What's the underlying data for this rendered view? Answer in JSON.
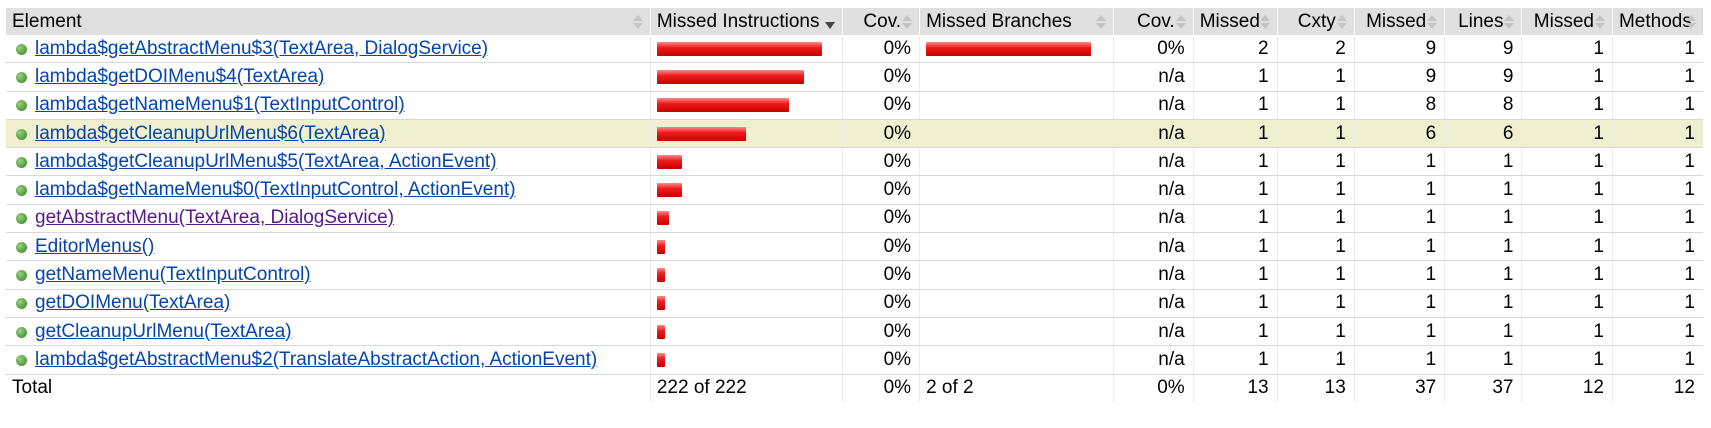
{
  "header": {
    "element": "Element",
    "missed_instructions": "Missed Instructions",
    "cov": "Cov.",
    "missed_branches": "Missed Branches",
    "cov2": "Cov.",
    "missed_cxty": "Missed",
    "cxty": "Cxty",
    "missed_lines": "Missed",
    "lines": "Lines",
    "missed_methods": "Missed",
    "methods": "Methods"
  },
  "rows": [
    {
      "name": "lambda$getAbstractMenu$3(TextArea, DialogService)",
      "instr_bar_fraction": 1.0,
      "instr_cov": "0%",
      "branch_bar_fraction": 1.0,
      "branch_cov": "0%",
      "missed_cxty": "2",
      "cxty": "2",
      "missed_lines": "9",
      "lines": "9",
      "missed_methods": "1",
      "methods": "1"
    },
    {
      "name": "lambda$getDOIMenu$4(TextArea)",
      "instr_bar_fraction": 0.89,
      "instr_cov": "0%",
      "branch_bar_fraction": 0,
      "branch_cov": "n/a",
      "missed_cxty": "1",
      "cxty": "1",
      "missed_lines": "9",
      "lines": "9",
      "missed_methods": "1",
      "methods": "1"
    },
    {
      "name": "lambda$getNameMenu$1(TextInputControl)",
      "instr_bar_fraction": 0.8,
      "instr_cov": "0%",
      "branch_bar_fraction": 0,
      "branch_cov": "n/a",
      "missed_cxty": "1",
      "cxty": "1",
      "missed_lines": "8",
      "lines": "8",
      "missed_methods": "1",
      "methods": "1"
    },
    {
      "name": "lambda$getCleanupUrlMenu$6(TextArea)",
      "instr_bar_fraction": 0.54,
      "instr_cov": "0%",
      "branch_bar_fraction": 0,
      "branch_cov": "n/a",
      "missed_cxty": "1",
      "cxty": "1",
      "missed_lines": "6",
      "lines": "6",
      "missed_methods": "1",
      "methods": "1",
      "highlight": true
    },
    {
      "name": "lambda$getCleanupUrlMenu$5(TextArea, ActionEvent)",
      "instr_bar_fraction": 0.15,
      "instr_cov": "0%",
      "branch_bar_fraction": 0,
      "branch_cov": "n/a",
      "missed_cxty": "1",
      "cxty": "1",
      "missed_lines": "1",
      "lines": "1",
      "missed_methods": "1",
      "methods": "1"
    },
    {
      "name": "lambda$getNameMenu$0(TextInputControl, ActionEvent)",
      "instr_bar_fraction": 0.15,
      "instr_cov": "0%",
      "branch_bar_fraction": 0,
      "branch_cov": "n/a",
      "missed_cxty": "1",
      "cxty": "1",
      "missed_lines": "1",
      "lines": "1",
      "missed_methods": "1",
      "methods": "1"
    },
    {
      "name": "getAbstractMenu(TextArea, DialogService)",
      "instr_bar_fraction": 0.07,
      "instr_cov": "0%",
      "branch_bar_fraction": 0,
      "branch_cov": "n/a",
      "missed_cxty": "1",
      "cxty": "1",
      "missed_lines": "1",
      "lines": "1",
      "missed_methods": "1",
      "methods": "1",
      "visited": true
    },
    {
      "name": "EditorMenus()",
      "instr_bar_fraction": 0.045,
      "instr_cov": "0%",
      "branch_bar_fraction": 0,
      "branch_cov": "n/a",
      "missed_cxty": "1",
      "cxty": "1",
      "missed_lines": "1",
      "lines": "1",
      "missed_methods": "1",
      "methods": "1"
    },
    {
      "name": "getNameMenu(TextInputControl)",
      "instr_bar_fraction": 0.045,
      "instr_cov": "0%",
      "branch_bar_fraction": 0,
      "branch_cov": "n/a",
      "missed_cxty": "1",
      "cxty": "1",
      "missed_lines": "1",
      "lines": "1",
      "missed_methods": "1",
      "methods": "1"
    },
    {
      "name": "getDOIMenu(TextArea)",
      "instr_bar_fraction": 0.045,
      "instr_cov": "0%",
      "branch_bar_fraction": 0,
      "branch_cov": "n/a",
      "missed_cxty": "1",
      "cxty": "1",
      "missed_lines": "1",
      "lines": "1",
      "missed_methods": "1",
      "methods": "1"
    },
    {
      "name": "getCleanupUrlMenu(TextArea)",
      "instr_bar_fraction": 0.045,
      "instr_cov": "0%",
      "branch_bar_fraction": 0,
      "branch_cov": "n/a",
      "missed_cxty": "1",
      "cxty": "1",
      "missed_lines": "1",
      "lines": "1",
      "missed_methods": "1",
      "methods": "1"
    },
    {
      "name": "lambda$getAbstractMenu$2(TranslateAbstractAction, ActionEvent)",
      "instr_bar_fraction": 0.045,
      "instr_cov": "0%",
      "branch_bar_fraction": 0,
      "branch_cov": "n/a",
      "missed_cxty": "1",
      "cxty": "1",
      "missed_lines": "1",
      "lines": "1",
      "missed_methods": "1",
      "methods": "1"
    }
  ],
  "footer": {
    "label": "Total",
    "instructions": "222 of 222",
    "instr_cov": "0%",
    "branches": "2 of 2",
    "branch_cov": "0%",
    "missed_cxty": "13",
    "cxty": "13",
    "missed_lines": "37",
    "lines": "37",
    "missed_methods": "12",
    "methods": "12"
  },
  "colors": {
    "bar_red": "#ee1c1c",
    "header_bg": "#e0e0e0",
    "highlight_row": "#f0f0d0",
    "link": "#0645ad",
    "visited_link": "#551a8b"
  }
}
